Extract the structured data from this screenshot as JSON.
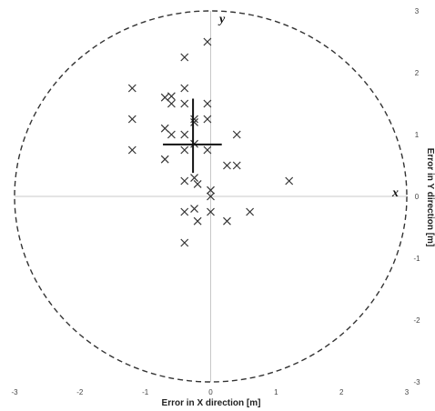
{
  "chart_data": {
    "type": "scatter",
    "xlabel": "Error in X direction [m]",
    "ylabel": "Error in  Y direction  [m]",
    "xlim": [
      -3,
      3
    ],
    "ylim": [
      -3,
      3
    ],
    "x_ticks": [
      "-3",
      "-2",
      "-1",
      "0",
      "1",
      "2",
      "3"
    ],
    "y_ticks": [
      "3",
      "2",
      "1",
      "0",
      "-1",
      "-2",
      "-3"
    ],
    "axis_letters": {
      "x": "x",
      "y": "y"
    },
    "grid": false,
    "marker": "x",
    "marker_color": "#333333",
    "circle_radius": 3,
    "circle_style": "dashed",
    "mean_cross": {
      "x": -0.27,
      "y": 0.84,
      "x_extent": [
        -0.73,
        0.17
      ],
      "y_extent": [
        0.38,
        1.58
      ]
    },
    "points": [
      {
        "x": -0.05,
        "y": 2.5
      },
      {
        "x": -0.4,
        "y": 2.25
      },
      {
        "x": -1.2,
        "y": 1.75
      },
      {
        "x": -0.4,
        "y": 1.75
      },
      {
        "x": -0.7,
        "y": 1.6
      },
      {
        "x": -0.6,
        "y": 1.62
      },
      {
        "x": -0.6,
        "y": 1.5
      },
      {
        "x": -0.4,
        "y": 1.5
      },
      {
        "x": -0.05,
        "y": 1.5
      },
      {
        "x": -1.2,
        "y": 1.25
      },
      {
        "x": -0.25,
        "y": 1.25
      },
      {
        "x": -0.05,
        "y": 1.25
      },
      {
        "x": -0.25,
        "y": 1.2
      },
      {
        "x": -0.7,
        "y": 1.1
      },
      {
        "x": -0.6,
        "y": 1.0
      },
      {
        "x": -0.4,
        "y": 1.0
      },
      {
        "x": 0.4,
        "y": 1.0
      },
      {
        "x": -0.25,
        "y": 0.85
      },
      {
        "x": -1.2,
        "y": 0.75
      },
      {
        "x": -0.4,
        "y": 0.75
      },
      {
        "x": -0.05,
        "y": 0.75
      },
      {
        "x": -0.7,
        "y": 0.6
      },
      {
        "x": 0.25,
        "y": 0.5
      },
      {
        "x": 0.4,
        "y": 0.5
      },
      {
        "x": -0.25,
        "y": 0.3
      },
      {
        "x": -0.4,
        "y": 0.25
      },
      {
        "x": -0.2,
        "y": 0.2
      },
      {
        "x": 1.2,
        "y": 0.25
      },
      {
        "x": 0.0,
        "y": 0.1
      },
      {
        "x": 0.0,
        "y": 0.0
      },
      {
        "x": -0.25,
        "y": -0.2
      },
      {
        "x": -0.4,
        "y": -0.25
      },
      {
        "x": 0.0,
        "y": -0.25
      },
      {
        "x": 0.6,
        "y": -0.25
      },
      {
        "x": -0.2,
        "y": -0.4
      },
      {
        "x": 0.25,
        "y": -0.4
      },
      {
        "x": -0.4,
        "y": -0.75
      }
    ]
  }
}
